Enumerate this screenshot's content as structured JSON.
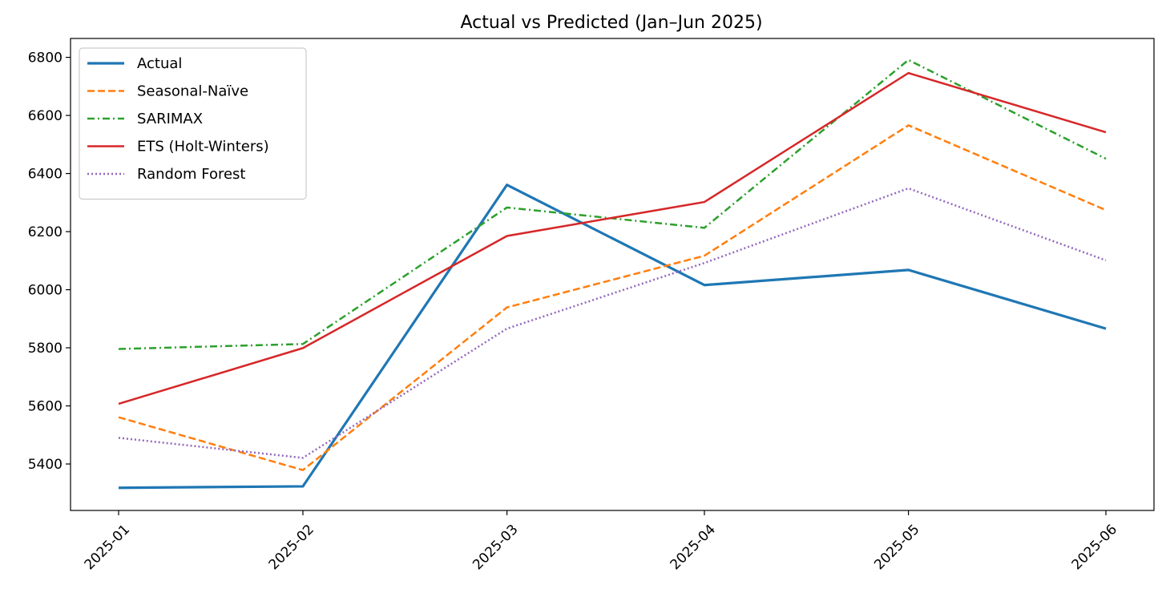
{
  "chart_data": {
    "type": "line",
    "title": "Actual vs Predicted (Jan–Jun 2025)",
    "xlabel": "",
    "ylabel": "",
    "categories": [
      "2025-01",
      "2025-02",
      "2025-03",
      "2025-04",
      "2025-05",
      "2025-06"
    ],
    "x": [
      "2025-01-31",
      "2025-02-28",
      "2025-03-31",
      "2025-04-30",
      "2025-05-31",
      "2025-06-30"
    ],
    "ylim": [
      5240,
      6865
    ],
    "yticks": [
      5400,
      5600,
      5800,
      6000,
      6200,
      6400,
      6600,
      6800
    ],
    "grid": false,
    "legend": "top-left",
    "series": [
      {
        "name": "Actual",
        "color": "#1f77b4",
        "style": "solid",
        "values": [
          5318,
          5323,
          6361,
          6016,
          6068,
          5866
        ]
      },
      {
        "name": "Seasonal-Naïve",
        "color": "#ff7f0e",
        "style": "dashed",
        "values": [
          5561,
          5379,
          5939,
          6117,
          6566,
          6274
        ]
      },
      {
        "name": "SARIMAX",
        "color": "#2ca02c",
        "style": "dashdot",
        "values": [
          5796,
          5813,
          6283,
          6213,
          6791,
          6451
        ]
      },
      {
        "name": "ETS (Holt-Winters)",
        "color": "#d62728",
        "style": "solid",
        "values": [
          5607,
          5799,
          6185,
          6302,
          6746,
          6542
        ]
      },
      {
        "name": "Random Forest",
        "color": "#9467bd",
        "style": "dotted",
        "values": [
          5490,
          5421,
          5866,
          6092,
          6349,
          6101
        ]
      }
    ]
  }
}
